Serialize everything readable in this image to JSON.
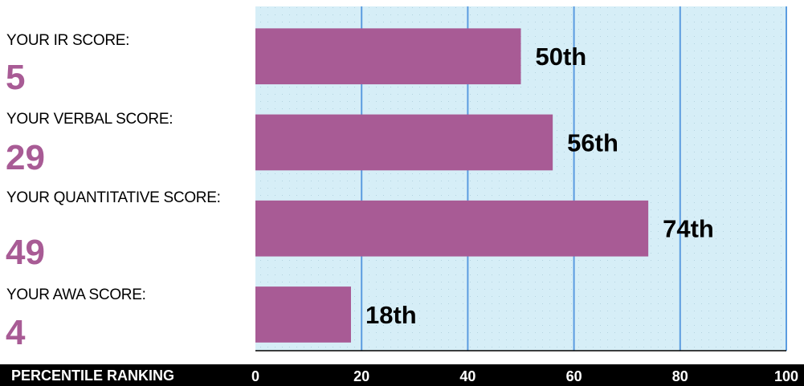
{
  "colors": {
    "accent": "#a85b95",
    "plot_background": "#d6eef7",
    "gridline": "#5b9ce0",
    "footer_background": "#000000",
    "footer_text": "#ffffff"
  },
  "scores": [
    {
      "label": "YOUR IR SCORE:",
      "value": "5"
    },
    {
      "label": "YOUR VERBAL SCORE:",
      "value": "29"
    },
    {
      "label": "YOUR QUANTITATIVE SCORE:",
      "value": "49"
    },
    {
      "label": "YOUR AWA SCORE:",
      "value": "4"
    }
  ],
  "chart_data": {
    "type": "bar",
    "orientation": "horizontal",
    "categories": [
      "IR",
      "Verbal",
      "Quantitative",
      "AWA"
    ],
    "values": [
      50,
      56,
      74,
      18
    ],
    "data_labels": [
      "50th",
      "56th",
      "74th",
      "18th"
    ],
    "xlabel": "PERCENTILE RANKING",
    "ylabel": "",
    "xlim": [
      0,
      100
    ],
    "x_ticks": [
      0,
      20,
      40,
      60,
      80,
      100
    ],
    "x_tick_labels": [
      "0",
      "20",
      "40",
      "60",
      "80",
      "100"
    ],
    "grid": true
  }
}
